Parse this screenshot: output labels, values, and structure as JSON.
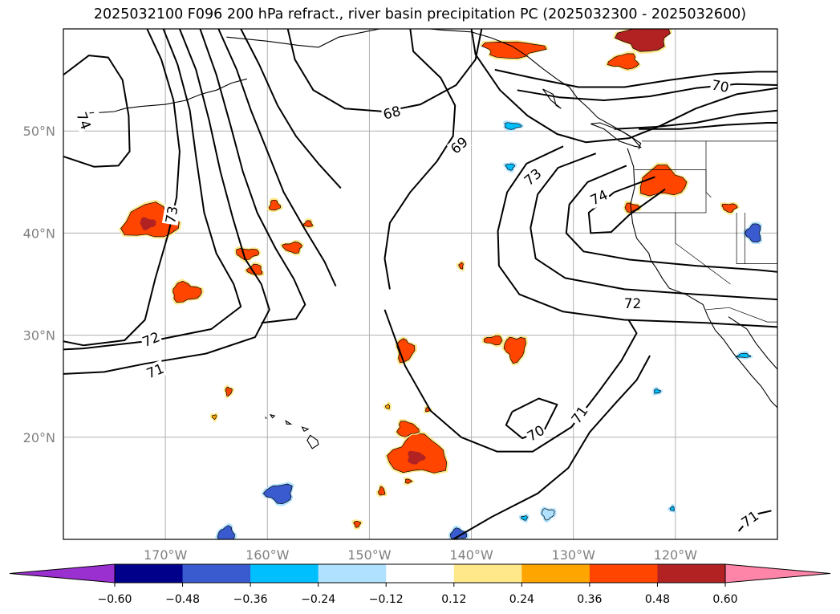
{
  "title": "2025032100 F096 200 hPa refract., river basin precipitation PC (2025032300 - 2025032600)",
  "map": {
    "lon_range": [
      -180,
      -110
    ],
    "lat_range": [
      10,
      60
    ],
    "lon_ticks": [
      -170,
      -160,
      -150,
      -140,
      -130,
      -120
    ],
    "lat_ticks": [
      20,
      30,
      40,
      50
    ],
    "lon_tick_labels": [
      "170°W",
      "160°W",
      "150°W",
      "140°W",
      "130°W",
      "120°W"
    ],
    "lat_tick_labels": [
      "20°N",
      "30°N",
      "40°N",
      "50°N"
    ],
    "gridlines": true
  },
  "contours": {
    "field": "200 hPa refractivity",
    "labels": [
      {
        "text": "74",
        "lon": -178.0,
        "lat": 51.0,
        "angle": 70
      },
      {
        "text": "73",
        "lon": -169.4,
        "lat": 41.8,
        "angle": -80
      },
      {
        "text": "72",
        "lon": -171.4,
        "lat": 29.6,
        "angle": -22
      },
      {
        "text": "71",
        "lon": -171.0,
        "lat": 26.5,
        "angle": -22
      },
      {
        "text": "68",
        "lon": -147.8,
        "lat": 51.8,
        "angle": -15
      },
      {
        "text": "69",
        "lon": -141.2,
        "lat": 48.6,
        "angle": -40
      },
      {
        "text": "73",
        "lon": -134.0,
        "lat": 45.5,
        "angle": -40
      },
      {
        "text": "74",
        "lon": -127.5,
        "lat": 43.5,
        "angle": -25
      },
      {
        "text": "70",
        "lon": -115.6,
        "lat": 54.4,
        "angle": 10
      },
      {
        "text": "72",
        "lon": -124.2,
        "lat": 33.1,
        "angle": 0
      },
      {
        "text": "70",
        "lon": -133.7,
        "lat": 20.4,
        "angle": -30
      },
      {
        "text": "71",
        "lon": -129.4,
        "lat": 22.2,
        "angle": -55
      },
      {
        "text": "71",
        "lon": -112.7,
        "lat": 12.0,
        "angle": -35
      }
    ]
  },
  "precip": {
    "field": "river basin precipitation PC",
    "blobs": [
      {
        "lon": -171.5,
        "lat": 41.1,
        "rx": 2.6,
        "ry": 1.6,
        "level": 0.42
      },
      {
        "lon": -168.0,
        "lat": 34.2,
        "rx": 1.4,
        "ry": 0.9,
        "level": 0.4
      },
      {
        "lon": -162.0,
        "lat": 38.0,
        "rx": 1.1,
        "ry": 0.5,
        "level": 0.38
      },
      {
        "lon": -157.5,
        "lat": 38.6,
        "rx": 0.9,
        "ry": 0.5,
        "level": 0.38
      },
      {
        "lon": -161.2,
        "lat": 36.4,
        "rx": 0.7,
        "ry": 0.5,
        "level": 0.38
      },
      {
        "lon": -159.3,
        "lat": 42.7,
        "rx": 0.5,
        "ry": 0.5,
        "level": 0.38
      },
      {
        "lon": -146.5,
        "lat": 28.5,
        "rx": 0.8,
        "ry": 1.1,
        "level": 0.4
      },
      {
        "lon": -135.7,
        "lat": 28.7,
        "rx": 1.0,
        "ry": 1.2,
        "level": 0.4
      },
      {
        "lon": -137.8,
        "lat": 29.5,
        "rx": 0.9,
        "ry": 0.4,
        "level": 0.38
      },
      {
        "lon": -145.2,
        "lat": 18.2,
        "rx": 2.8,
        "ry": 1.8,
        "level": 0.42
      },
      {
        "lon": -146.3,
        "lat": 20.8,
        "rx": 1.0,
        "ry": 0.7,
        "level": 0.4
      },
      {
        "lon": -136.0,
        "lat": 58.0,
        "rx": 2.8,
        "ry": 0.8,
        "level": 0.42
      },
      {
        "lon": -123.0,
        "lat": 59.1,
        "rx": 2.4,
        "ry": 1.2,
        "level": 0.5
      },
      {
        "lon": -125.0,
        "lat": 56.8,
        "rx": 1.4,
        "ry": 0.7,
        "level": 0.4
      },
      {
        "lon": -121.3,
        "lat": 45.0,
        "rx": 2.2,
        "ry": 1.4,
        "level": 0.42
      },
      {
        "lon": -124.3,
        "lat": 42.5,
        "rx": 0.7,
        "ry": 0.4,
        "level": 0.38
      },
      {
        "lon": -114.7,
        "lat": 42.5,
        "rx": 0.7,
        "ry": 0.4,
        "level": 0.38
      },
      {
        "lon": -141.0,
        "lat": 36.8,
        "rx": 0.2,
        "ry": 0.3,
        "level": 0.38
      },
      {
        "lon": -156.0,
        "lat": 40.9,
        "rx": 0.4,
        "ry": 0.3,
        "level": 0.38
      },
      {
        "lon": -144.3,
        "lat": 22.7,
        "rx": 0.2,
        "ry": 0.2,
        "level": 0.38
      },
      {
        "lon": -163.8,
        "lat": 24.5,
        "rx": 0.3,
        "ry": 0.4,
        "level": 0.38
      },
      {
        "lon": -165.2,
        "lat": 22.0,
        "rx": 0.2,
        "ry": 0.2,
        "level": 0.3
      },
      {
        "lon": -148.2,
        "lat": 23.0,
        "rx": 0.2,
        "ry": 0.2,
        "level": 0.3
      },
      {
        "lon": -148.8,
        "lat": 14.7,
        "rx": 0.3,
        "ry": 0.4,
        "level": 0.38
      },
      {
        "lon": -146.2,
        "lat": 15.7,
        "rx": 0.3,
        "ry": 0.2,
        "level": 0.38
      },
      {
        "lon": -151.2,
        "lat": 11.5,
        "rx": 0.3,
        "ry": 0.3,
        "level": 0.38
      },
      {
        "lon": -158.8,
        "lat": 14.5,
        "rx": 1.3,
        "ry": 0.9,
        "level": -0.42
      },
      {
        "lon": -164.0,
        "lat": 10.5,
        "rx": 0.8,
        "ry": 0.7,
        "level": -0.4
      },
      {
        "lon": -141.3,
        "lat": 10.5,
        "rx": 0.8,
        "ry": 0.5,
        "level": -0.38
      },
      {
        "lon": -136.0,
        "lat": 50.5,
        "rx": 0.8,
        "ry": 0.3,
        "level": -0.35
      },
      {
        "lon": -136.2,
        "lat": 46.5,
        "rx": 0.4,
        "ry": 0.3,
        "level": -0.3
      },
      {
        "lon": -112.3,
        "lat": 40.0,
        "rx": 0.7,
        "ry": 0.9,
        "level": -0.38
      },
      {
        "lon": -113.3,
        "lat": 28.0,
        "rx": 0.6,
        "ry": 0.2,
        "level": -0.3
      },
      {
        "lon": -121.8,
        "lat": 24.5,
        "rx": 0.3,
        "ry": 0.2,
        "level": -0.3
      },
      {
        "lon": -132.5,
        "lat": 12.5,
        "rx": 0.6,
        "ry": 0.5,
        "level": -0.18
      },
      {
        "lon": -134.8,
        "lat": 12.1,
        "rx": 0.3,
        "ry": 0.2,
        "level": -0.3
      },
      {
        "lon": -120.3,
        "lat": 13.0,
        "rx": 0.2,
        "ry": 0.2,
        "level": -0.3
      }
    ]
  },
  "colorbar": {
    "ticks": [
      "−0.60",
      "−0.48",
      "−0.36",
      "−0.24",
      "−0.12",
      "0.12",
      "0.24",
      "0.36",
      "0.48",
      "0.60"
    ],
    "under_color": "#9b30d0",
    "over_color": "#ff85a8",
    "colors": [
      "#00008b",
      "#3a5bcf",
      "#00bfff",
      "#b0e2ff",
      "#ffffff",
      "#ffe88a",
      "#ffa500",
      "#ff4500",
      "#b22222"
    ]
  }
}
